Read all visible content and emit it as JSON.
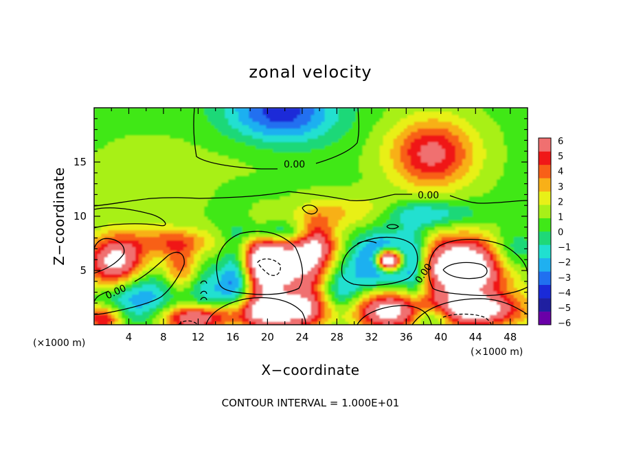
{
  "chart_data": {
    "type": "heatmap",
    "title": "zonal velocity",
    "xlabel": "X−coordinate",
    "ylabel": "Z−coordinate",
    "x_unit_left": "(×1000 m)",
    "x_unit_right": "(×1000 m)",
    "xlim": [
      0,
      50
    ],
    "ylim": [
      0,
      20
    ],
    "xticks": [
      4,
      8,
      12,
      16,
      20,
      24,
      28,
      32,
      36,
      40,
      44,
      48
    ],
    "yticks": [
      5,
      10,
      15
    ],
    "colorbar": {
      "min": -6,
      "max": 6,
      "ticks": [
        "6",
        "5",
        "4",
        "3",
        "2",
        "1",
        "0",
        "−1",
        "−2",
        "−3",
        "−4",
        "−5",
        "−6"
      ],
      "colors": [
        "#6a00a8",
        "#1f1fa0",
        "#1a2ad8",
        "#2070f0",
        "#1fb0f0",
        "#20e0d0",
        "#1fd878",
        "#40e818",
        "#a8f018",
        "#e8f018",
        "#f8b018",
        "#f86018",
        "#f01818",
        "#f07070"
      ]
    },
    "contour_labels": [
      "0.00",
      "0.00",
      "0.00",
      "0.00"
    ],
    "contour_interval_text": "CONTOUR INTERVAL = 1.000E+01",
    "field_sources": [
      {
        "x": 21.5,
        "z": 19.5,
        "v": -4.8,
        "sx": 4.5,
        "sz": 2.3
      },
      {
        "x": 39.0,
        "z": 15.8,
        "v": 5.0,
        "sx": 3.5,
        "sz": 2.3
      },
      {
        "x": 30.0,
        "z": 10.5,
        "v": 2.0,
        "sx": 3.5,
        "sz": 1.1
      },
      {
        "x": 38.5,
        "z": 10.2,
        "v": -2.5,
        "sx": 4.0,
        "sz": 0.9
      },
      {
        "x": 20.0,
        "z": 16.5,
        "v": 1.0,
        "sx": 5.0,
        "sz": 2.0
      },
      {
        "x": 6.0,
        "z": 13.0,
        "v": 0.8,
        "sx": 5.0,
        "sz": 3.0
      },
      {
        "x": 2.5,
        "z": 5.7,
        "v": 7.0,
        "sx": 2.4,
        "sz": 1.7
      },
      {
        "x": 10.0,
        "z": 5.2,
        "v": 3.5,
        "sx": 1.5,
        "sz": 1.5
      },
      {
        "x": 9.0,
        "z": 7.7,
        "v": 3.0,
        "sx": 3.5,
        "sz": 0.9
      },
      {
        "x": 5.0,
        "z": 2.8,
        "v": -3.5,
        "sx": 3.0,
        "sz": 1.6
      },
      {
        "x": 13.5,
        "z": 2.5,
        "v": -3.0,
        "sx": 2.0,
        "sz": 2.0
      },
      {
        "x": 20.0,
        "z": 5.7,
        "v": 9.0,
        "sx": 2.7,
        "sz": 2.1
      },
      {
        "x": 16.5,
        "z": 4.5,
        "v": -5.0,
        "sx": 1.3,
        "sz": 2.6
      },
      {
        "x": 21.5,
        "z": 8.5,
        "v": -4.0,
        "sx": 3.0,
        "sz": 0.8
      },
      {
        "x": 25.5,
        "z": 7.5,
        "v": 6.0,
        "sx": 1.8,
        "sz": 1.8
      },
      {
        "x": 25.0,
        "z": 3.5,
        "v": 3.0,
        "sx": 1.8,
        "sz": 2.0
      },
      {
        "x": 20.5,
        "z": 1.2,
        "v": 7.0,
        "sx": 5.0,
        "sz": 1.2
      },
      {
        "x": 28.5,
        "z": 2.5,
        "v": -3.5,
        "sx": 2.0,
        "sz": 2.0
      },
      {
        "x": 33.5,
        "z": 6.0,
        "v": -6.0,
        "sx": 2.2,
        "sz": 1.6
      },
      {
        "x": 34.0,
        "z": 6.0,
        "v": 13.0,
        "sx": 1.1,
        "sz": 0.7
      },
      {
        "x": 37.0,
        "z": 5.0,
        "v": -4.0,
        "sx": 1.3,
        "sz": 2.5
      },
      {
        "x": 42.5,
        "z": 5.3,
        "v": 9.0,
        "sx": 4.0,
        "sz": 2.0
      },
      {
        "x": 34.0,
        "z": 1.3,
        "v": 6.5,
        "sx": 3.3,
        "sz": 1.3
      },
      {
        "x": 44.0,
        "z": 1.3,
        "v": 6.5,
        "sx": 4.0,
        "sz": 1.1
      },
      {
        "x": 48.0,
        "z": 6.5,
        "v": -3.0,
        "sx": 2.0,
        "sz": 1.5
      },
      {
        "x": 39.0,
        "z": 0.8,
        "v": -4.0,
        "sx": 1.5,
        "sz": 0.8
      },
      {
        "x": 11.5,
        "z": 0.6,
        "v": 6.0,
        "sx": 2.5,
        "sz": 0.8
      },
      {
        "x": 1.0,
        "z": 0.6,
        "v": 5.0,
        "sx": 1.5,
        "sz": 0.8
      }
    ]
  }
}
